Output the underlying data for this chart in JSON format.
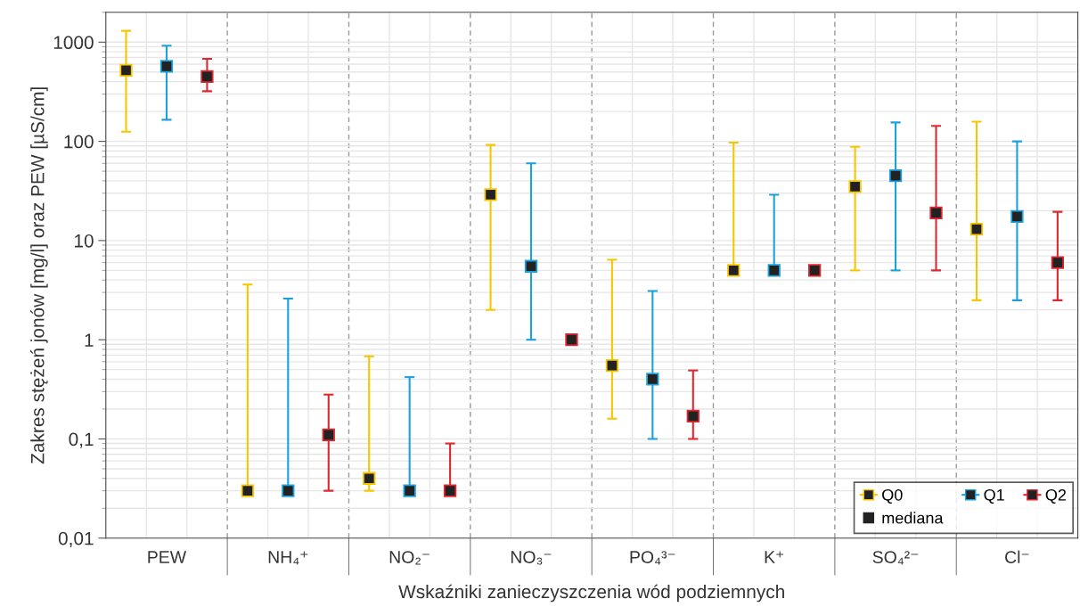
{
  "chart_data": {
    "type": "scatter",
    "xlabel": "Wskaźniki zanieczyszczenia wód podziemnych",
    "ylabel": "Zakres stężeń jonów [mg/l] oraz PEW [µS/cm]",
    "categories": [
      "PEW",
      "NH₄⁺",
      "NO₂⁻",
      "NO₃⁻",
      "PO₄³⁻",
      "K⁺",
      "SO₄²⁻",
      "Cl⁻"
    ],
    "series": [
      {
        "name": "Q0",
        "color": "#f7c600",
        "values": [
          520,
          0.03,
          0.04,
          29,
          0.55,
          5,
          35,
          13
        ],
        "errors": [
          [
            125,
            1300
          ],
          [
            0.03,
            3.6
          ],
          [
            0.03,
            0.68
          ],
          [
            2,
            92
          ],
          [
            0.16,
            6.4
          ],
          [
            5,
            97
          ],
          [
            5,
            88
          ],
          [
            2.5,
            158
          ]
        ]
      },
      {
        "name": "Q1",
        "color": "#1ba1dc",
        "values": [
          570,
          0.03,
          0.03,
          5.5,
          0.4,
          5,
          45,
          17.5
        ],
        "errors": [
          [
            165,
            920
          ],
          [
            0.03,
            2.6
          ],
          [
            0.03,
            0.42
          ],
          [
            1,
            60
          ],
          [
            0.1,
            3.1
          ],
          [
            5,
            29
          ],
          [
            5,
            155
          ],
          [
            2.5,
            100
          ]
        ]
      },
      {
        "name": "Q2",
        "color": "#e2262e",
        "values": [
          450,
          0.11,
          0.03,
          1,
          0.17,
          5,
          19,
          6
        ],
        "errors": [
          [
            320,
            680
          ],
          [
            0.03,
            0.28
          ],
          [
            0.03,
            0.09
          ],
          null,
          [
            0.1,
            0.49
          ],
          null,
          [
            5,
            143
          ],
          [
            2.5,
            19.5
          ]
        ]
      }
    ],
    "annotations": [
      "mediana"
    ],
    "log": "y",
    "ylim": [
      0.01,
      2000
    ],
    "yticks": [
      {
        "value": 0.01,
        "label": "0,01"
      },
      {
        "value": 0.1,
        "label": "0,1"
      },
      1,
      10,
      100,
      1000
    ],
    "marker": "square",
    "grid": true,
    "legend": "bottom right"
  }
}
